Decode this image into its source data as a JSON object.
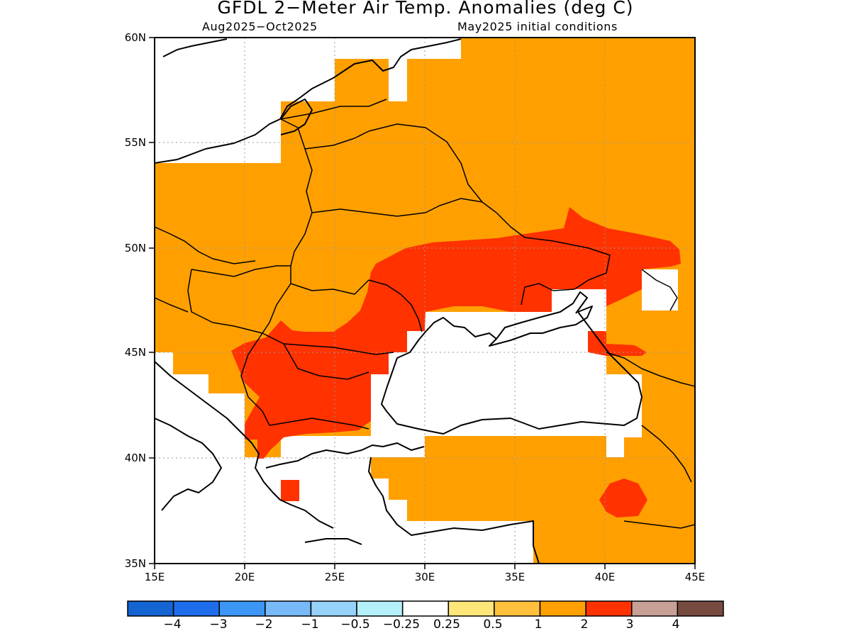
{
  "title": "GFDL 2−Meter Air Temp. Anomalies (deg C)",
  "subtitle_left": "Aug2025−Oct2025",
  "subtitle_right": "May2025 initial conditions",
  "lat_labels": [
    "60N",
    "55N",
    "50N",
    "45N",
    "40N",
    "35N"
  ],
  "lon_labels": [
    "15E",
    "20E",
    "25E",
    "30E",
    "35E",
    "40E",
    "45E"
  ],
  "colorbar": {
    "colors": [
      "#1464d2",
      "#1e6eeb",
      "#3c96f5",
      "#78b9fa",
      "#96d2fa",
      "#b4f0fa",
      "#ffffff",
      "#ffe678",
      "#ffc03c",
      "#ffa000",
      "#ff3200",
      "#c8a096",
      "#784b41"
    ],
    "labels": [
      "−4",
      "−3",
      "−2",
      "−1",
      "−0.5",
      "−0.25",
      "0.25",
      "0.5",
      "1",
      "2",
      "3",
      "4"
    ]
  },
  "legend_colors": {
    "anomaly_1_2": "#ffa000",
    "anomaly_2_3": "#ff3200",
    "no_signal": "#ffffff"
  }
}
